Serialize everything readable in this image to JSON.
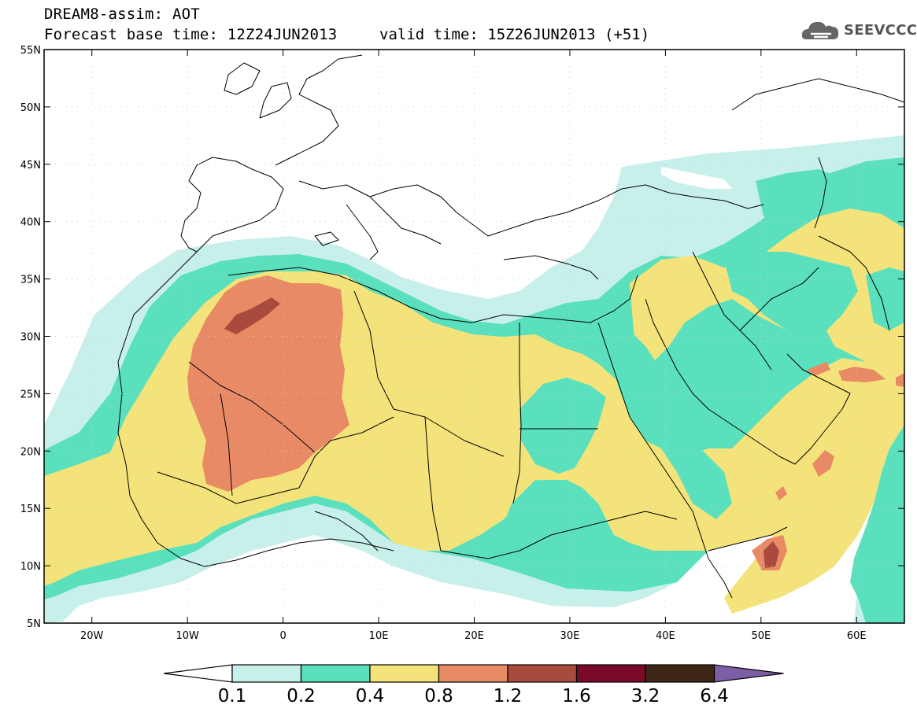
{
  "title": {
    "line1": "DREAM8-assim: AOT",
    "line2": "Forecast base time: 12Z24JUN2013",
    "valid": "valid time: 15Z26JUN2013 (+51)"
  },
  "logo": {
    "text": "SEEVCCC",
    "icon": "cloud-icon"
  },
  "map_data": {
    "type": "contour-map",
    "variable": "AOT",
    "lon_range": [
      -25,
      65
    ],
    "lat_range": [
      5,
      55
    ],
    "lat_ticks": [
      {
        "value": 55,
        "label": "55N"
      },
      {
        "value": 50,
        "label": "50N"
      },
      {
        "value": 45,
        "label": "45N"
      },
      {
        "value": 40,
        "label": "40N"
      },
      {
        "value": 35,
        "label": "35N"
      },
      {
        "value": 30,
        "label": "30N"
      },
      {
        "value": 25,
        "label": "25N"
      },
      {
        "value": 20,
        "label": "20N"
      },
      {
        "value": 15,
        "label": "15N"
      },
      {
        "value": 10,
        "label": "10N"
      },
      {
        "value": 5,
        "label": "5N"
      }
    ],
    "lon_ticks": [
      {
        "value": -20,
        "label": "20W"
      },
      {
        "value": -10,
        "label": "10W"
      },
      {
        "value": 0,
        "label": "0"
      },
      {
        "value": 10,
        "label": "10E"
      },
      {
        "value": 20,
        "label": "20E"
      },
      {
        "value": 30,
        "label": "30E"
      },
      {
        "value": 40,
        "label": "40E"
      },
      {
        "value": 50,
        "label": "50E"
      },
      {
        "value": 60,
        "label": "60E"
      }
    ]
  },
  "colorbar": {
    "levels": [
      "0.1",
      "0.2",
      "0.4",
      "0.8",
      "1.2",
      "1.6",
      "3.2",
      "6.4"
    ],
    "colors": [
      "#ffffff",
      "#c8f0ea",
      "#5ae0bc",
      "#f4e37a",
      "#e98a66",
      "#a84b3d",
      "#7a0a28",
      "#3e2716",
      "#7b5ea3"
    ]
  }
}
